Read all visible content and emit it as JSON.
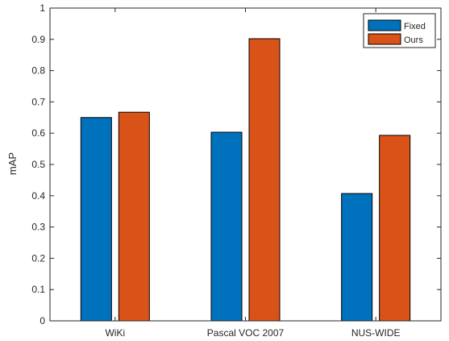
{
  "chart_data": {
    "type": "bar",
    "categories": [
      "WiKi",
      "Pascal VOC 2007",
      "NUS-WIDE"
    ],
    "series": [
      {
        "name": "Fixed",
        "color": "#0072BD",
        "values": [
          0.65,
          0.603,
          0.407
        ]
      },
      {
        "name": "Ours",
        "color": "#D95319",
        "values": [
          0.667,
          0.902,
          0.593
        ]
      }
    ],
    "title": "",
    "xlabel": "",
    "ylabel": "mAP",
    "ylim": [
      0,
      1
    ],
    "yticks": [
      "0",
      "0.1",
      "0.2",
      "0.3",
      "0.4",
      "0.5",
      "0.6",
      "0.7",
      "0.8",
      "0.9",
      "1"
    ],
    "grid": false,
    "legend_position": "top-right"
  }
}
